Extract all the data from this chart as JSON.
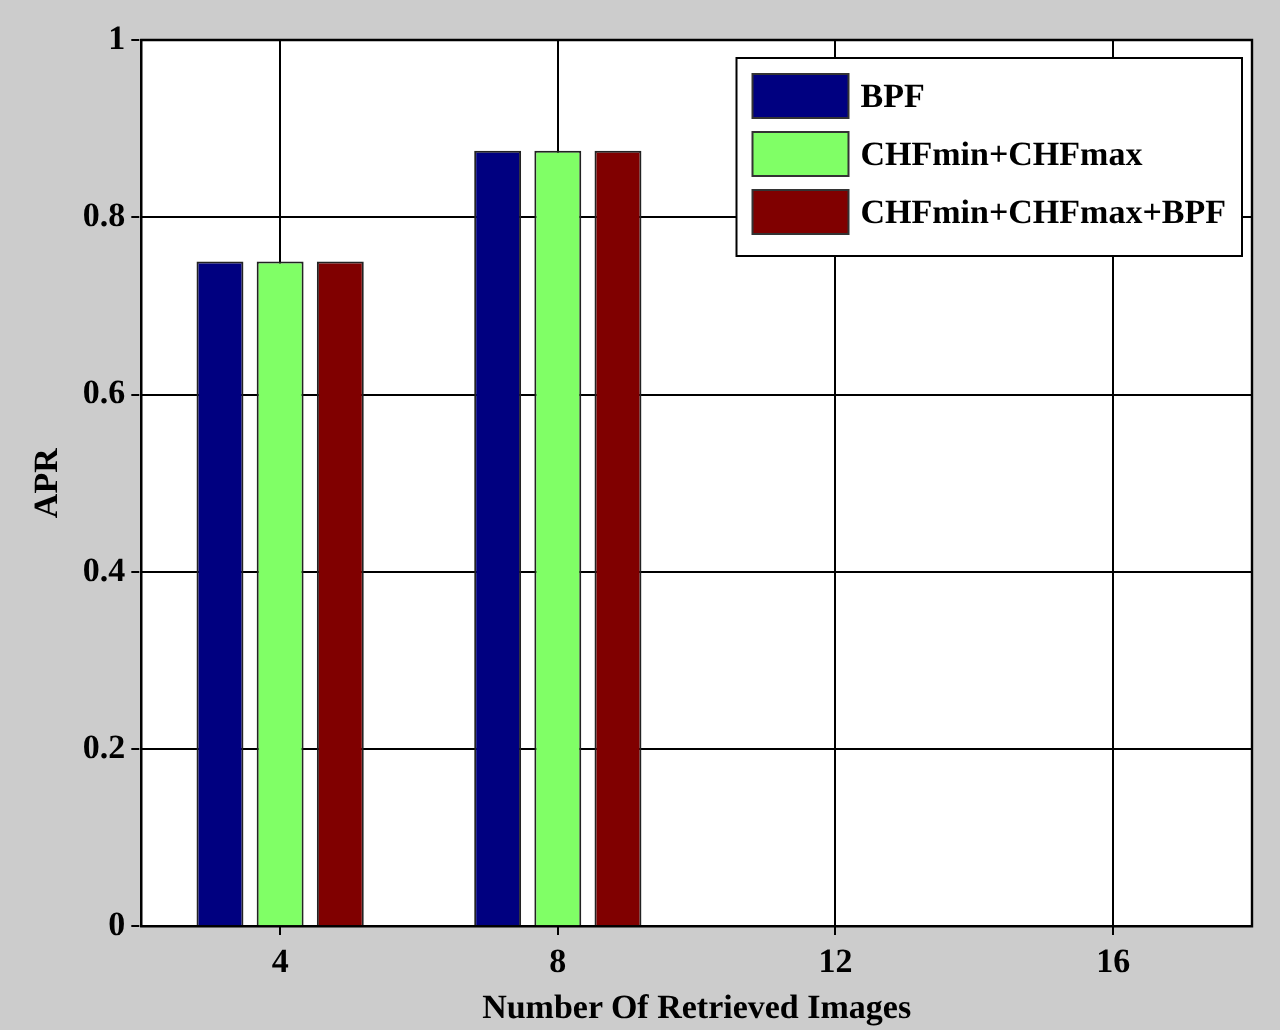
{
  "chart_data": {
    "type": "bar",
    "xlabel": "Number Of Retrieved Images",
    "ylabel": "APR",
    "categories": [
      "4",
      "8",
      "12",
      "16"
    ],
    "series": [
      {
        "name": "BPF",
        "color": "#000080",
        "values": [
          0.75,
          0.875,
          null,
          null
        ]
      },
      {
        "name": "CHFmin+CHFmax",
        "color": "#80ff66",
        "values": [
          0.75,
          0.875,
          null,
          null
        ]
      },
      {
        "name": "CHFmin+CHFmax+BPF",
        "color": "#800000",
        "values": [
          0.75,
          0.875,
          null,
          null
        ]
      }
    ],
    "ylim": [
      0,
      1
    ],
    "yticks": [
      0,
      0.2,
      0.4,
      0.6,
      0.8,
      1
    ],
    "grid": true,
    "legend": "top right"
  }
}
